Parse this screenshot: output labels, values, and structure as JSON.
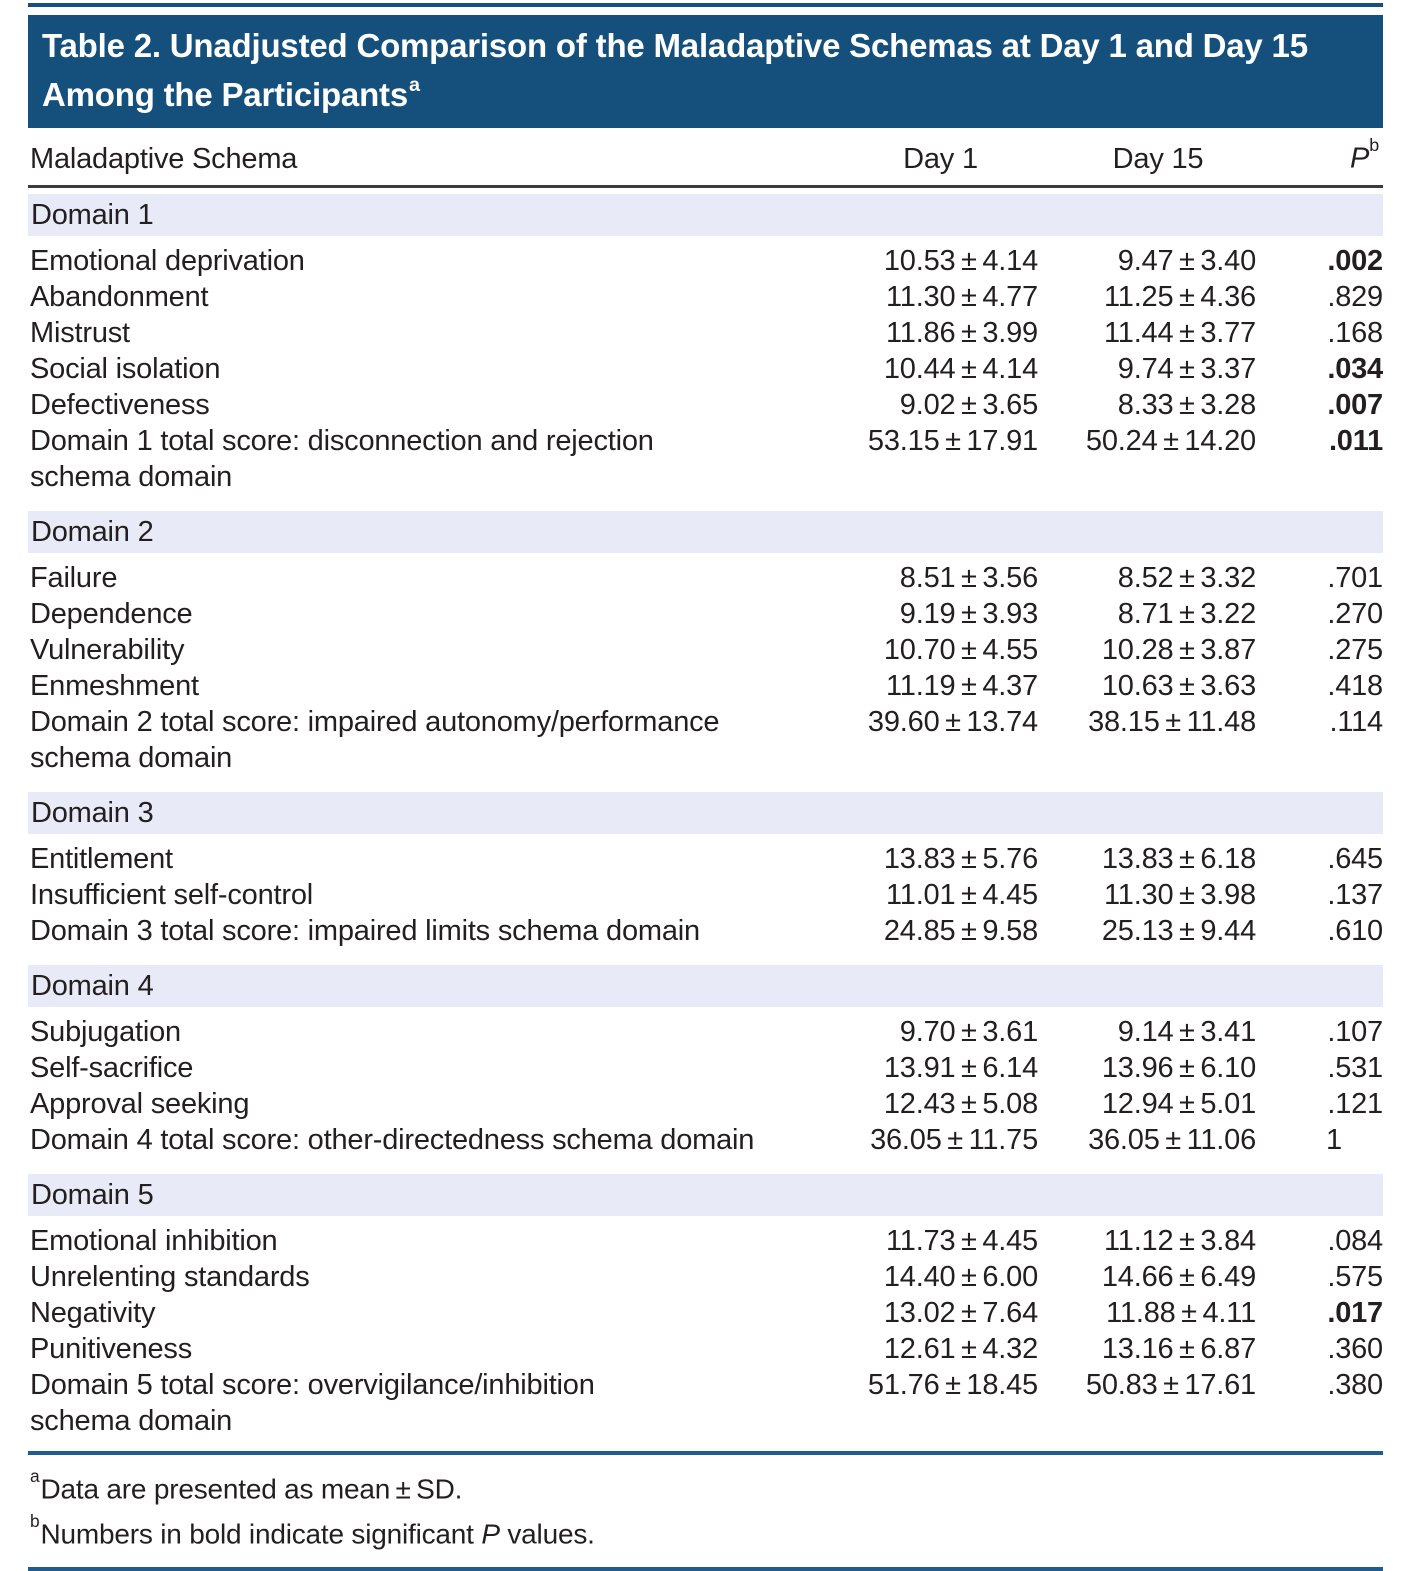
{
  "title": {
    "line1": "Table 2. Unadjusted Comparison of the Maladaptive Schemas at Day 1 and Day 15",
    "line2": "Among the Participants",
    "superscript": "a"
  },
  "columns": {
    "schema": "Maladaptive Schema",
    "day1": "Day 1",
    "day15": "Day 15",
    "p_label": "P",
    "p_superscript": "b"
  },
  "sections": [
    {
      "domain": "Domain 1",
      "rows": [
        {
          "name_lines": [
            "Emotional deprivation"
          ],
          "day1": "10.53 ± 4.14",
          "day15": "9.47 ± 3.40",
          "p": ".002",
          "significant": true
        },
        {
          "name_lines": [
            "Abandonment"
          ],
          "day1": "11.30 ± 4.77",
          "day15": "11.25 ± 4.36",
          "p": ".829",
          "significant": false
        },
        {
          "name_lines": [
            "Mistrust"
          ],
          "day1": "11.86 ± 3.99",
          "day15": "11.44 ± 3.77",
          "p": ".168",
          "significant": false
        },
        {
          "name_lines": [
            "Social isolation"
          ],
          "day1": "10.44 ± 4.14",
          "day15": "9.74 ± 3.37",
          "p": ".034",
          "significant": true
        },
        {
          "name_lines": [
            "Defectiveness"
          ],
          "day1": "9.02 ± 3.65",
          "day15": "8.33 ± 3.28",
          "p": ".007",
          "significant": true
        },
        {
          "name_lines": [
            "Domain 1 total score: disconnection and rejection",
            "schema domain"
          ],
          "day1": "53.15 ± 17.91",
          "day15": "50.24 ± 14.20",
          "p": ".011",
          "significant": true
        }
      ]
    },
    {
      "domain": "Domain 2",
      "rows": [
        {
          "name_lines": [
            "Failure"
          ],
          "day1": "8.51 ± 3.56",
          "day15": "8.52 ± 3.32",
          "p": ".701",
          "significant": false
        },
        {
          "name_lines": [
            "Dependence"
          ],
          "day1": "9.19 ± 3.93",
          "day15": "8.71 ± 3.22",
          "p": ".270",
          "significant": false
        },
        {
          "name_lines": [
            "Vulnerability"
          ],
          "day1": "10.70 ± 4.55",
          "day15": "10.28 ± 3.87",
          "p": ".275",
          "significant": false
        },
        {
          "name_lines": [
            "Enmeshment"
          ],
          "day1": "11.19 ± 4.37",
          "day15": "10.63 ± 3.63",
          "p": ".418",
          "significant": false
        },
        {
          "name_lines": [
            "Domain 2 total score: impaired autonomy/performance",
            "schema domain"
          ],
          "day1": "39.60 ± 13.74",
          "day15": "38.15 ± 11.48",
          "p": ".114",
          "significant": false
        }
      ]
    },
    {
      "domain": "Domain 3",
      "rows": [
        {
          "name_lines": [
            "Entitlement"
          ],
          "day1": "13.83 ± 5.76",
          "day15": "13.83 ± 6.18",
          "p": ".645",
          "significant": false
        },
        {
          "name_lines": [
            "Insufficient self-control"
          ],
          "day1": "11.01 ± 4.45",
          "day15": "11.30 ± 3.98",
          "p": ".137",
          "significant": false
        },
        {
          "name_lines": [
            "Domain 3 total score: impaired limits schema domain"
          ],
          "day1": "24.85 ± 9.58",
          "day15": "25.13 ± 9.44",
          "p": ".610",
          "significant": false
        }
      ]
    },
    {
      "domain": "Domain 4",
      "rows": [
        {
          "name_lines": [
            "Subjugation"
          ],
          "day1": "9.70 ± 3.61",
          "day15": "9.14 ± 3.41",
          "p": ".107",
          "significant": false
        },
        {
          "name_lines": [
            "Self-sacrifice"
          ],
          "day1": "13.91 ± 6.14",
          "day15": "13.96 ± 6.10",
          "p": ".531",
          "significant": false
        },
        {
          "name_lines": [
            "Approval seeking"
          ],
          "day1": "12.43 ± 5.08",
          "day15": "12.94 ± 5.01",
          "p": ".121",
          "significant": false
        },
        {
          "name_lines": [
            "Domain 4 total score: other-directedness schema domain"
          ],
          "day1": "36.05 ± 11.75",
          "day15": "36.05 ± 11.06",
          "p": "1",
          "significant": false,
          "p_align": "left"
        }
      ]
    },
    {
      "domain": "Domain 5",
      "rows": [
        {
          "name_lines": [
            "Emotional inhibition"
          ],
          "day1": "11.73 ± 4.45",
          "day15": "11.12 ± 3.84",
          "p": ".084",
          "significant": false
        },
        {
          "name_lines": [
            "Unrelenting standards"
          ],
          "day1": "14.40 ± 6.00",
          "day15": "14.66 ± 6.49",
          "p": ".575",
          "significant": false
        },
        {
          "name_lines": [
            "Negativity"
          ],
          "day1": "13.02 ± 7.64",
          "day15": "11.88 ± 4.11",
          "p": ".017",
          "significant": true
        },
        {
          "name_lines": [
            "Punitiveness"
          ],
          "day1": "12.61 ± 4.32",
          "day15": "13.16 ± 6.87",
          "p": ".360",
          "significant": false
        },
        {
          "name_lines": [
            "Domain 5 total score: overvigilance/inhibition",
            "schema domain"
          ],
          "day1": "51.76 ± 18.45",
          "day15": "50.83 ± 17.61",
          "p": ".380",
          "significant": false
        }
      ]
    }
  ],
  "footnotes": [
    {
      "marker": "a",
      "parts": [
        {
          "text": "Data are presented as mean ± SD."
        }
      ]
    },
    {
      "marker": "b",
      "parts": [
        {
          "text": "Numbers in bold indicate significant "
        },
        {
          "text": "P",
          "italic": true
        },
        {
          "text": " values."
        }
      ]
    }
  ],
  "colors": {
    "header_navy": "#15507C",
    "band_blue": "#E8EBF7",
    "rule_blue": "#1F5C8F",
    "header_divider": "#3B3B3B",
    "text": "#231F20"
  }
}
